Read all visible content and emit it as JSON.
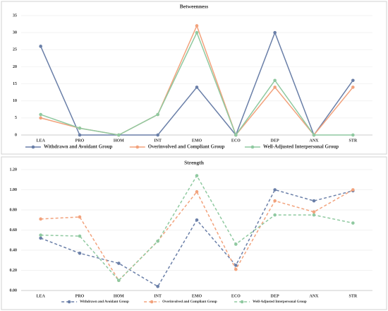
{
  "chart_data": [
    {
      "type": "line",
      "title": "Betweenness",
      "categories": [
        "LEA",
        "PRO",
        "HOM",
        "INT",
        "EMO",
        "ECO",
        "DEP",
        "ANX",
        "STR"
      ],
      "series": [
        {
          "name": "Withdrawn and Avoidant Group",
          "color": "#6a7fa8",
          "values": [
            26,
            0,
            0,
            0,
            14,
            0,
            30,
            0,
            16
          ]
        },
        {
          "name": "Overinvolved and Compliant Group",
          "color": "#f2a27c",
          "values": [
            5,
            2,
            0,
            6,
            32,
            0,
            14,
            0,
            14
          ]
        },
        {
          "name": "Well-Adjusted Interpersonal Group",
          "color": "#8fc9a0",
          "values": [
            6,
            2,
            0,
            6,
            30,
            0,
            16,
            0,
            0
          ]
        }
      ],
      "ylim": [
        0,
        35
      ],
      "yticks": [
        0,
        5,
        10,
        15,
        20,
        25,
        30,
        35
      ],
      "dashed": false
    },
    {
      "type": "line",
      "title": "Strength",
      "categories": [
        "LEA",
        "PRO",
        "HOM",
        "INT",
        "EMO",
        "ECO",
        "DEP",
        "ANX",
        "STR"
      ],
      "series": [
        {
          "name": "Withdrawn and Avoidant Group",
          "color": "#6a7fa8",
          "values": [
            0.52,
            0.37,
            0.27,
            0.04,
            0.7,
            0.25,
            1.0,
            0.89,
            0.99
          ]
        },
        {
          "name": "Overinvolved and Compliant Group",
          "color": "#f2a27c",
          "values": [
            0.71,
            0.73,
            0.1,
            0.49,
            0.98,
            0.21,
            0.89,
            0.78,
            1.0
          ]
        },
        {
          "name": "Well-Adjusted Interpersonal Group",
          "color": "#8fc9a0",
          "values": [
            0.55,
            0.54,
            0.1,
            0.49,
            1.14,
            0.46,
            0.75,
            0.75,
            0.67
          ]
        }
      ],
      "ylim": [
        0,
        1.2
      ],
      "yticks": [
        {
          "value": 0,
          "label": "0.00"
        },
        {
          "value": 0.2,
          "label": "0.20"
        },
        {
          "value": 0.4,
          "label": "0.40"
        },
        {
          "value": 0.6,
          "label": "0.60"
        },
        {
          "value": 0.8,
          "label": "0.80"
        },
        {
          "value": 1.0,
          "label": "1.00"
        },
        {
          "value": 1.2,
          "label": "1.20"
        }
      ],
      "dashed": true
    }
  ]
}
